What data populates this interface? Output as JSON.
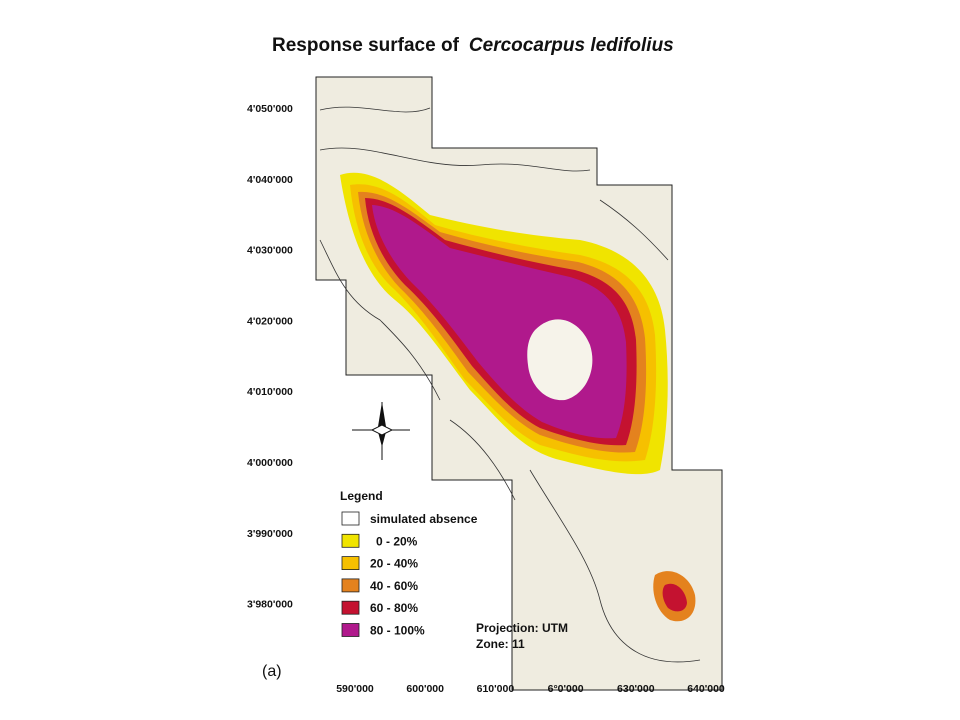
{
  "title": {
    "text": "Response surface of",
    "species": "Cercocarpus ledifolius"
  },
  "y_axis_labels": [
    "4'050'000",
    "4'040'000",
    "4'030'000",
    "4'020'000",
    "4'010'000",
    "4'000'000",
    "3'990'000",
    "3'980'000"
  ],
  "x_axis_labels": [
    "590'000",
    "600'000",
    "610'000",
    "6°0'000",
    "630'000",
    "640'000"
  ],
  "legend": {
    "title": "Legend",
    "items": [
      {
        "label": "simulated absence",
        "color": "#ffffff"
      },
      {
        "label": "0 - 20%",
        "color": "#f0e400"
      },
      {
        "label": "20 - 40%",
        "color": "#f6c000"
      },
      {
        "label": "40 - 60%",
        "color": "#e4821e"
      },
      {
        "label": "60 - 80%",
        "color": "#c41230"
      },
      {
        "label": "80 - 100%",
        "color": "#b0198c"
      }
    ]
  },
  "projection": {
    "line1": "Projection: UTM",
    "line2": "Zone: 11"
  },
  "panel_label": "(a)"
}
